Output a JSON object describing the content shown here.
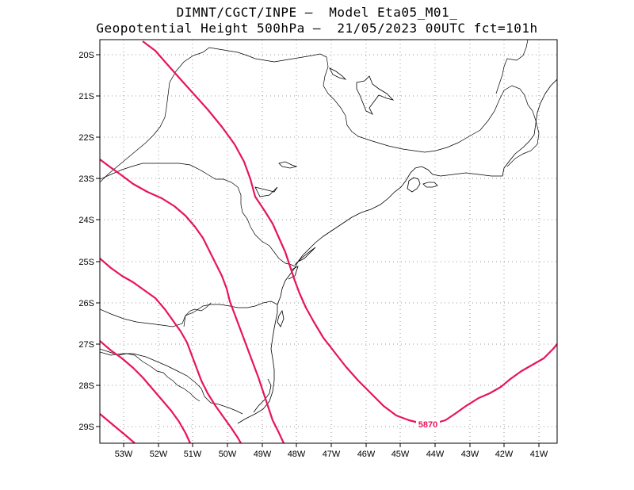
{
  "header": {
    "line1": "DIMNT/CGCT/INPE –  Model Eta05_M01_",
    "line2": "Geopotential Height 500hPa –  21/05/2023 00UTC fct=101h"
  },
  "map": {
    "lon_range": [
      -53.7,
      -40.6
    ],
    "lat_range": [
      -29.4,
      -19.7
    ],
    "lon_ticks": [
      "53W",
      "52W",
      "51W",
      "50W",
      "49W",
      "48W",
      "47W",
      "46W",
      "45W",
      "44W",
      "43W",
      "42W",
      "41W"
    ],
    "lat_ticks": [
      "20S",
      "21S",
      "22S",
      "23S",
      "24S",
      "25S",
      "26S",
      "27S",
      "28S",
      "29S"
    ],
    "grid": "dotted",
    "contour_color": "#e8145a",
    "contour_label": "5870"
  }
}
